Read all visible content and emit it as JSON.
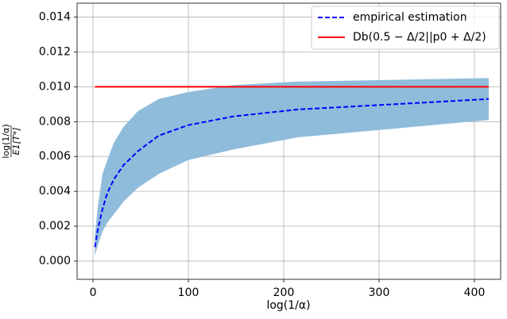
{
  "chart_data": {
    "type": "line",
    "xlabel": "log(1/α)",
    "ylabel": {
      "numerator": "log(1/α)",
      "denominator": "E1[T*]"
    },
    "x": [
      2,
      5,
      10,
      15,
      22,
      32,
      47,
      69,
      100,
      147,
      215,
      316,
      415
    ],
    "band": {
      "color": "#8fbcdb",
      "lower": [
        0.0003,
        0.0009,
        0.0017,
        0.0022,
        0.0027,
        0.0034,
        0.0042,
        0.005,
        0.0058,
        0.0064,
        0.0071,
        0.0076,
        0.0081
      ],
      "upper": [
        0.0015,
        0.0031,
        0.005,
        0.0058,
        0.0068,
        0.0077,
        0.0086,
        0.0093,
        0.0097,
        0.0101,
        0.0103,
        0.0104,
        0.0105
      ]
    },
    "series": [
      {
        "name": "empirical estimation",
        "color": "#0000ff",
        "dash": true,
        "values": [
          0.0008,
          0.0018,
          0.003,
          0.0039,
          0.0047,
          0.0055,
          0.0063,
          0.0072,
          0.0078,
          0.0083,
          0.0087,
          0.009,
          0.0093
        ]
      },
      {
        "name": "Db(0.5 − Δ/2||p0 + Δ/2)",
        "color": "#ff0000",
        "dash": false,
        "values": [
          0.01,
          0.01,
          0.01,
          0.01,
          0.01,
          0.01,
          0.01,
          0.01,
          0.01,
          0.01,
          0.01,
          0.01,
          0.01
        ]
      }
    ],
    "xlim": [
      -16.7,
      427.5
    ],
    "ylim": [
      -0.00105,
      0.0148
    ],
    "xticks": [
      0,
      100,
      200,
      300,
      400
    ],
    "yticks": [
      {
        "value": 0,
        "label": "0.000"
      },
      {
        "value": 0.002,
        "label": "0.002"
      },
      {
        "value": 0.004,
        "label": "0.004"
      },
      {
        "value": 0.006,
        "label": "0.006"
      },
      {
        "value": 0.008,
        "label": "0.008"
      },
      {
        "value": 0.01,
        "label": "0.010"
      },
      {
        "value": 0.012,
        "label": "0.012"
      },
      {
        "value": 0.014,
        "label": "0.014"
      }
    ],
    "grid": true,
    "legend": "upper right"
  }
}
